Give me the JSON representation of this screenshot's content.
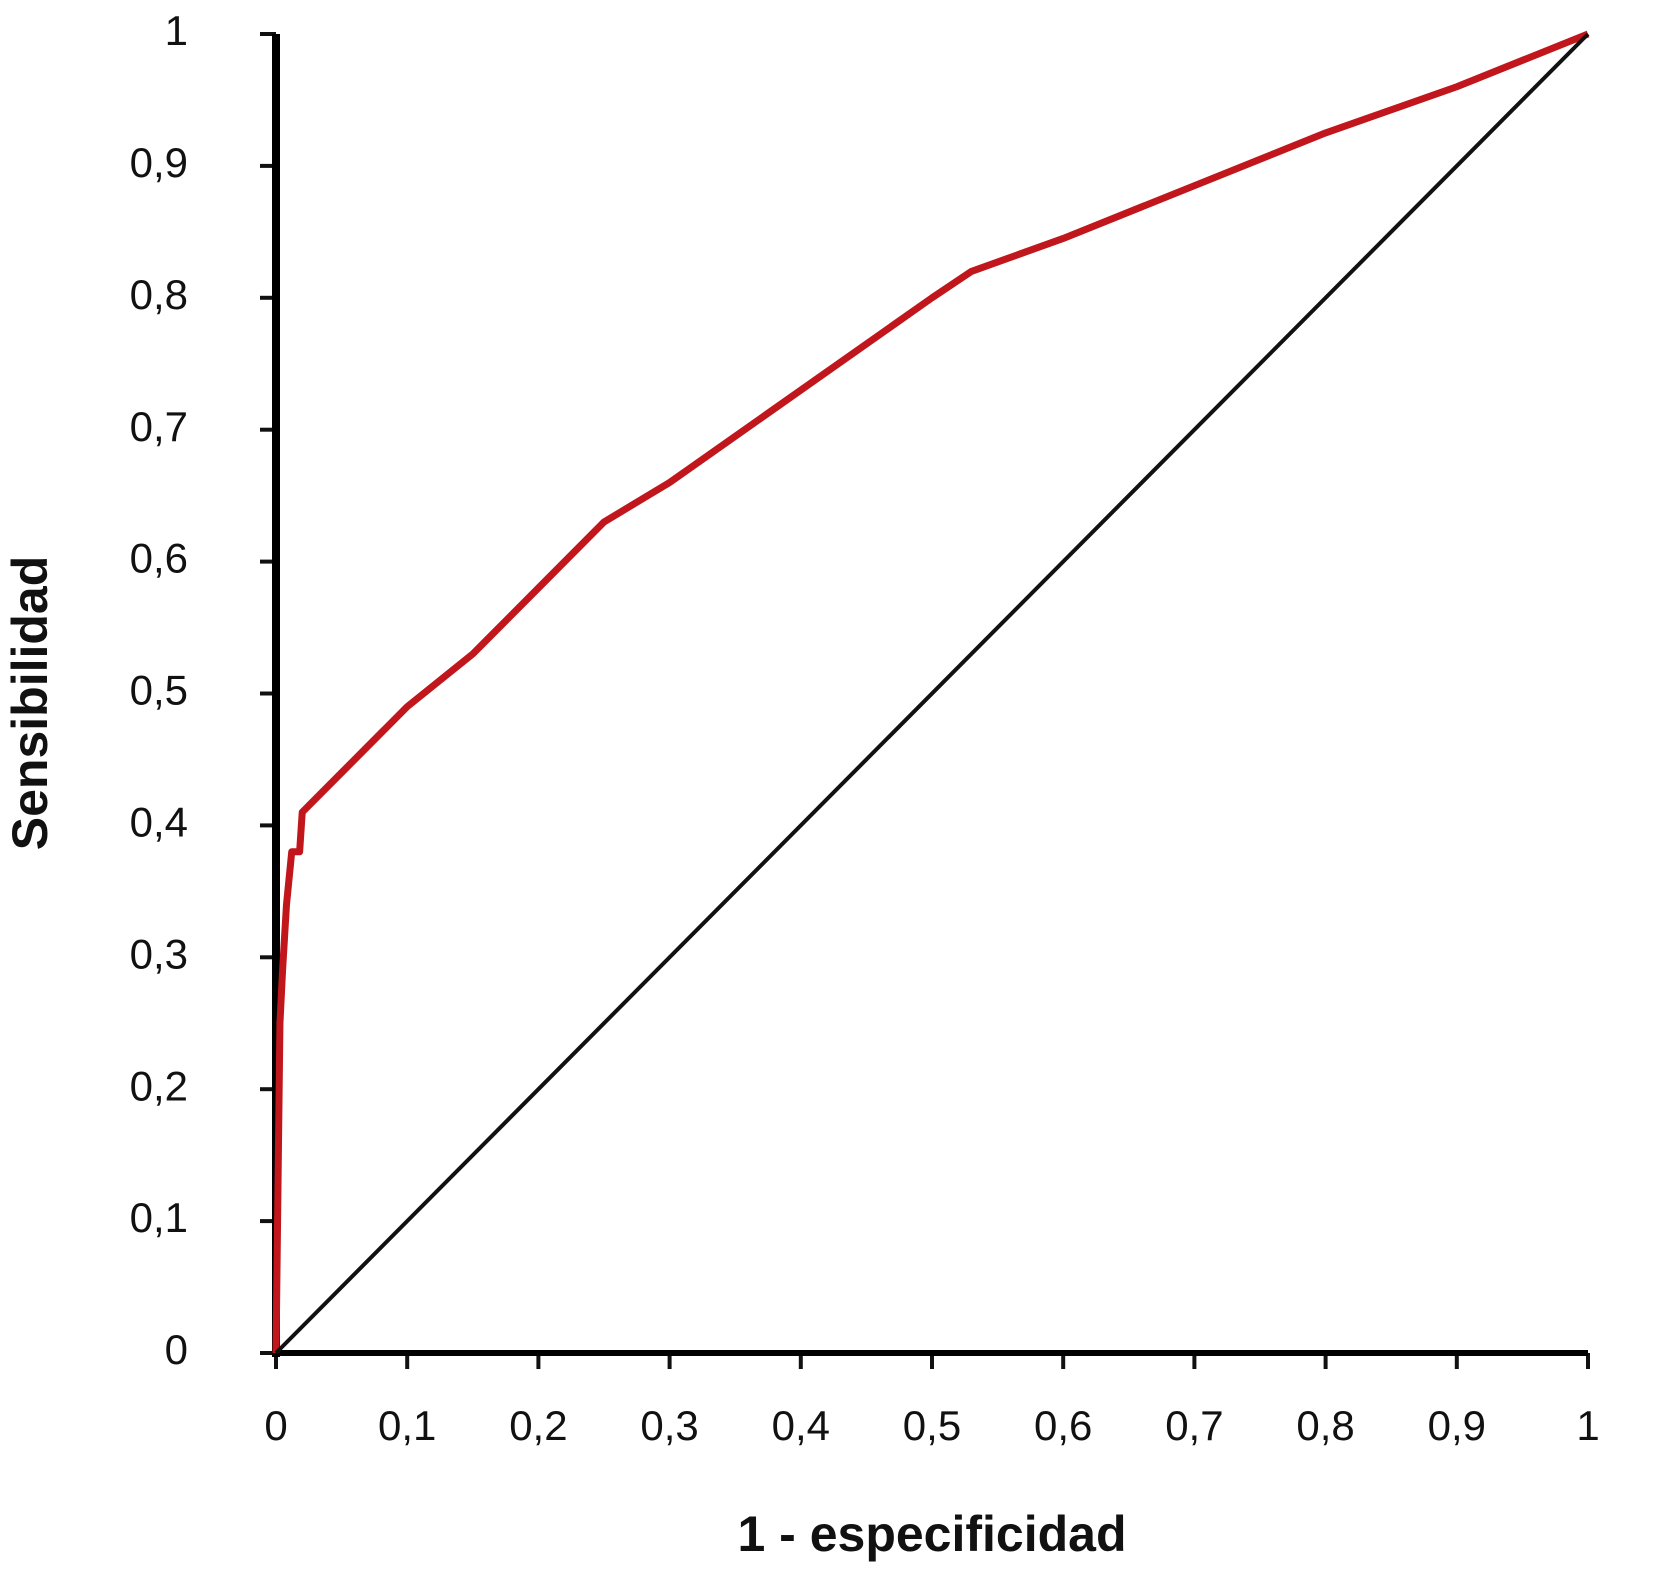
{
  "chart_data": {
    "type": "line",
    "xlabel": "1 - especificidad",
    "ylabel": "Sensibilidad",
    "series": [
      {
        "color": "#c0161c",
        "x": [
          0,
          0.003,
          0.005,
          0.008,
          0.012,
          0.018,
          0.02,
          0.05,
          0.1,
          0.15,
          0.2,
          0.25,
          0.3,
          0.4,
          0.5,
          0.53,
          0.6,
          0.7,
          0.8,
          0.9,
          1
        ],
        "values": [
          0,
          0.25,
          0.29,
          0.34,
          0.38,
          0.38,
          0.41,
          0.44,
          0.49,
          0.53,
          0.58,
          0.63,
          0.66,
          0.73,
          0.8,
          0.82,
          0.845,
          0.885,
          0.925,
          0.96,
          1
        ]
      },
      {
        "color": "#111111",
        "x": [
          0,
          1
        ],
        "values": [
          0,
          1
        ]
      }
    ],
    "xlim": [
      0,
      1
    ],
    "ylim": [
      0,
      1
    ],
    "xticks": [
      0,
      {
        "value": 0.1,
        "label": "0,1"
      },
      {
        "value": 0.2,
        "label": "0,2"
      },
      {
        "value": 0.3,
        "label": "0,3"
      },
      {
        "value": 0.4,
        "label": "0,4"
      },
      {
        "value": 0.5,
        "label": "0,5"
      },
      {
        "value": 0.6,
        "label": "0,6"
      },
      {
        "value": 0.7,
        "label": "0,7"
      },
      {
        "value": 0.8,
        "label": "0,8"
      },
      {
        "value": 0.9,
        "label": "0,9"
      },
      1
    ],
    "yticks": [
      0,
      {
        "value": 0.1,
        "label": "0,1"
      },
      {
        "value": 0.2,
        "label": "0,2"
      },
      {
        "value": 0.3,
        "label": "0,3"
      },
      {
        "value": 0.4,
        "label": "0,4"
      },
      {
        "value": 0.5,
        "label": "0,5"
      },
      {
        "value": 0.6,
        "label": "0,6"
      },
      {
        "value": 0.7,
        "label": "0,7"
      },
      {
        "value": 0.8,
        "label": "0,8"
      },
      {
        "value": 0.9,
        "label": "0,9"
      },
      1
    ],
    "grid": false
  }
}
